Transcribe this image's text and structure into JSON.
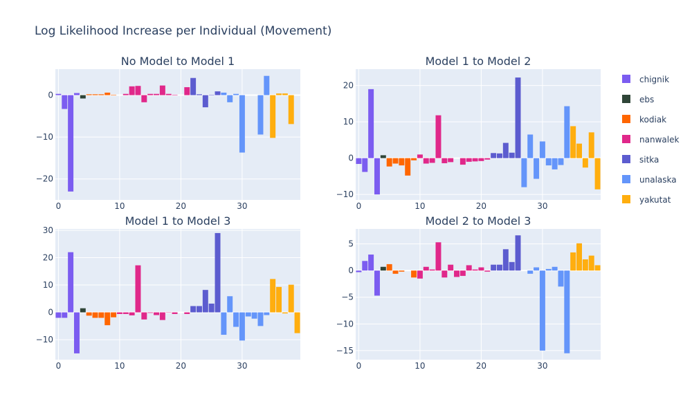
{
  "title": "Log Likelihood Increase per Individual (Movement)",
  "colors": {
    "background": "#ffffff",
    "plot_bg": "#e5ecf6",
    "grid": "#ffffff",
    "text": "#2a3f5f"
  },
  "legend": {
    "placement": "right",
    "items": [
      {
        "name": "chignik",
        "color": "#7b5cf0"
      },
      {
        "name": "ebs",
        "color": "#2f4538"
      },
      {
        "name": "kodiak",
        "color": "#ff6600"
      },
      {
        "name": "nanwalek",
        "color": "#e0288a"
      },
      {
        "name": "sitka",
        "color": "#5c5ccf"
      },
      {
        "name": "unalaska",
        "color": "#6495fa"
      },
      {
        "name": "yakutat",
        "color": "#ffae0f"
      }
    ]
  },
  "chart_data": [
    {
      "type": "bar",
      "title": "No Model to Model 1",
      "xlim": [
        -0.5,
        39.5
      ],
      "ylim": [
        -25,
        6.2
      ],
      "xticks": [
        0,
        10,
        20,
        30
      ],
      "yticks": [
        0,
        -10,
        -20
      ],
      "grid": true,
      "x": [
        0,
        1,
        2,
        3,
        4,
        5,
        6,
        7,
        8,
        9,
        10,
        11,
        12,
        13,
        14,
        15,
        16,
        17,
        18,
        19,
        20,
        21,
        22,
        23,
        24,
        25,
        26,
        27,
        28,
        29,
        30,
        31,
        32,
        33,
        34,
        35,
        36,
        37,
        38,
        39
      ],
      "groups": [
        "chignik",
        "chignik",
        "chignik",
        "chignik",
        "ebs",
        "kodiak",
        "kodiak",
        "kodiak",
        "kodiak",
        "kodiak",
        "nanwalek",
        "nanwalek",
        "nanwalek",
        "nanwalek",
        "nanwalek",
        "nanwalek",
        "nanwalek",
        "nanwalek",
        "nanwalek",
        "nanwalek",
        "nanwalek",
        "nanwalek",
        "sitka",
        "sitka",
        "sitka",
        "sitka",
        "sitka",
        "unalaska",
        "unalaska",
        "unalaska",
        "unalaska",
        "unalaska",
        "unalaska",
        "unalaska",
        "unalaska",
        "yakutat",
        "yakutat",
        "yakutat",
        "yakutat",
        "yakutat"
      ],
      "values": [
        0.3,
        -3.3,
        -23,
        0.5,
        -0.8,
        0.2,
        0.2,
        0.2,
        0.6,
        0.1,
        0,
        0.3,
        2.1,
        2.2,
        -1.7,
        0.3,
        0.3,
        2.3,
        0.3,
        0.1,
        0,
        1.9,
        4.1,
        0.2,
        -2.9,
        0.1,
        0.9,
        0.6,
        -1.7,
        0.3,
        -13.7,
        0,
        0,
        -9.4,
        4.6,
        -10.2,
        0.4,
        0.4,
        -6.9,
        0
      ]
    },
    {
      "type": "bar",
      "title": "Model 1 to Model 2",
      "xlim": [
        -0.5,
        39.5
      ],
      "ylim": [
        -11.5,
        24.5
      ],
      "xticks": [
        0,
        10,
        20,
        30
      ],
      "yticks": [
        20,
        10,
        0,
        -10
      ],
      "grid": true,
      "x": [
        0,
        1,
        2,
        3,
        4,
        5,
        6,
        7,
        8,
        9,
        10,
        11,
        12,
        13,
        14,
        15,
        16,
        17,
        18,
        19,
        20,
        21,
        22,
        23,
        24,
        25,
        26,
        27,
        28,
        29,
        30,
        31,
        32,
        33,
        34,
        35,
        36,
        37,
        38,
        39
      ],
      "groups": [
        "chignik",
        "chignik",
        "chignik",
        "chignik",
        "ebs",
        "kodiak",
        "kodiak",
        "kodiak",
        "kodiak",
        "kodiak",
        "nanwalek",
        "nanwalek",
        "nanwalek",
        "nanwalek",
        "nanwalek",
        "nanwalek",
        "nanwalek",
        "nanwalek",
        "nanwalek",
        "nanwalek",
        "nanwalek",
        "nanwalek",
        "sitka",
        "sitka",
        "sitka",
        "sitka",
        "sitka",
        "unalaska",
        "unalaska",
        "unalaska",
        "unalaska",
        "unalaska",
        "unalaska",
        "unalaska",
        "unalaska",
        "yakutat",
        "yakutat",
        "yakutat",
        "yakutat",
        "yakutat"
      ],
      "values": [
        -1.6,
        -3.8,
        19,
        -10,
        0.8,
        -2.3,
        -1.5,
        -2,
        -4.8,
        -0.6,
        1,
        -1.5,
        -1.3,
        11.8,
        -1.4,
        -1.1,
        0,
        -1.8,
        -1,
        -0.9,
        -0.8,
        -0.4,
        1.4,
        1.3,
        4.2,
        1.5,
        22.2,
        -8,
        6.5,
        -5.7,
        4.6,
        -2,
        -3.1,
        -1.9,
        14.3,
        8.8,
        4,
        -2.6,
        7.1,
        -8.6
      ]
    },
    {
      "type": "bar",
      "title": "Model 1 to Model 3",
      "xlim": [
        -0.5,
        39.5
      ],
      "ylim": [
        -17.3,
        30.5
      ],
      "xticks": [
        0,
        10,
        20,
        30
      ],
      "yticks": [
        30,
        20,
        10,
        0,
        -10
      ],
      "grid": true,
      "x": [
        0,
        1,
        2,
        3,
        4,
        5,
        6,
        7,
        8,
        9,
        10,
        11,
        12,
        13,
        14,
        15,
        16,
        17,
        18,
        19,
        20,
        21,
        22,
        23,
        24,
        25,
        26,
        27,
        28,
        29,
        30,
        31,
        32,
        33,
        34,
        35,
        36,
        37,
        38,
        39
      ],
      "groups": [
        "chignik",
        "chignik",
        "chignik",
        "chignik",
        "ebs",
        "kodiak",
        "kodiak",
        "kodiak",
        "kodiak",
        "kodiak",
        "nanwalek",
        "nanwalek",
        "nanwalek",
        "nanwalek",
        "nanwalek",
        "nanwalek",
        "nanwalek",
        "nanwalek",
        "nanwalek",
        "nanwalek",
        "nanwalek",
        "nanwalek",
        "sitka",
        "sitka",
        "sitka",
        "sitka",
        "sitka",
        "unalaska",
        "unalaska",
        "unalaska",
        "unalaska",
        "unalaska",
        "unalaska",
        "unalaska",
        "unalaska",
        "yakutat",
        "yakutat",
        "yakutat",
        "yakutat",
        "yakutat"
      ],
      "values": [
        -2,
        -2,
        22,
        -15,
        1.5,
        -1.2,
        -2,
        -2,
        -4.7,
        -1.8,
        -0.6,
        -0.6,
        -1.1,
        17.2,
        -2.6,
        -0.2,
        -1,
        -2.8,
        -0.1,
        -0.6,
        0,
        -0.6,
        2.3,
        2.3,
        8.2,
        3.2,
        29,
        -8.2,
        5.9,
        -5.3,
        -10.3,
        -1.5,
        -2.3,
        -5,
        -1,
        12.2,
        9.3,
        -0.4,
        10.1,
        -7.6
      ]
    },
    {
      "type": "bar",
      "title": "Model 2 to Model 3",
      "xlim": [
        -0.5,
        39.5
      ],
      "ylim": [
        -16.7,
        7.8
      ],
      "xticks": [
        0,
        10,
        20,
        30
      ],
      "yticks": [
        5,
        0,
        -5,
        -10,
        -15
      ],
      "grid": true,
      "x": [
        0,
        1,
        2,
        3,
        4,
        5,
        6,
        7,
        8,
        9,
        10,
        11,
        12,
        13,
        14,
        15,
        16,
        17,
        18,
        19,
        20,
        21,
        22,
        23,
        24,
        25,
        26,
        27,
        28,
        29,
        30,
        31,
        32,
        33,
        34,
        35,
        36,
        37,
        38,
        39
      ],
      "groups": [
        "chignik",
        "chignik",
        "chignik",
        "chignik",
        "ebs",
        "kodiak",
        "kodiak",
        "kodiak",
        "kodiak",
        "kodiak",
        "nanwalek",
        "nanwalek",
        "nanwalek",
        "nanwalek",
        "nanwalek",
        "nanwalek",
        "nanwalek",
        "nanwalek",
        "nanwalek",
        "nanwalek",
        "nanwalek",
        "nanwalek",
        "sitka",
        "sitka",
        "sitka",
        "sitka",
        "sitka",
        "unalaska",
        "unalaska",
        "unalaska",
        "unalaska",
        "unalaska",
        "unalaska",
        "unalaska",
        "unalaska",
        "yakutat",
        "yakutat",
        "yakutat",
        "yakutat",
        "yakutat"
      ],
      "values": [
        -0.3,
        1.8,
        3,
        -4.7,
        0.7,
        1.2,
        -0.6,
        -0.2,
        0,
        -1.3,
        -1.5,
        0.7,
        0.2,
        5.3,
        -1.3,
        1.1,
        -1.2,
        -1,
        1,
        0.2,
        0.6,
        -0.2,
        1.1,
        1.1,
        4,
        1.6,
        6.6,
        0,
        -0.6,
        0.6,
        -15,
        0.3,
        0.7,
        -3,
        -15.5,
        3.4,
        5.1,
        2.1,
        2.8,
        1
      ]
    }
  ]
}
